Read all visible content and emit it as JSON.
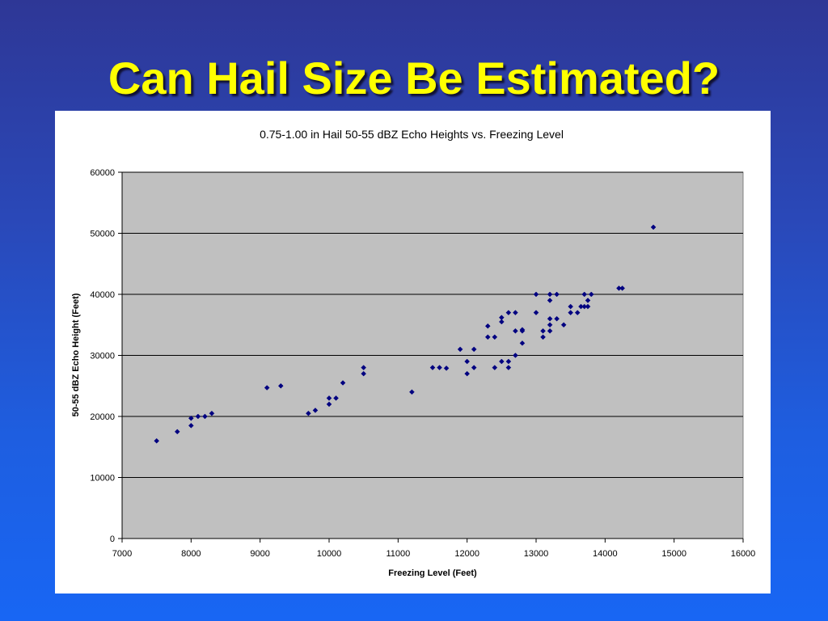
{
  "slide": {
    "title": "Can Hail Size Be Estimated?"
  },
  "colors": {
    "title_text": "#ffff00",
    "plot_background": "#c0c0c0",
    "marker": "#000080",
    "gridline": "#000000"
  },
  "chart_data": {
    "type": "scatter",
    "title": "0.75-1.00 in Hail 50-55 dBZ Echo Heights vs. Freezing Level",
    "xlabel": "Freezing Level (Feet)",
    "ylabel": "50-55 dBZ Echo Height (Feet)",
    "xlim": [
      7000,
      16000
    ],
    "ylim": [
      0,
      60000
    ],
    "xticks": [
      7000,
      8000,
      9000,
      10000,
      11000,
      12000,
      13000,
      14000,
      15000,
      16000
    ],
    "yticks": [
      0,
      10000,
      20000,
      30000,
      40000,
      50000,
      60000
    ],
    "grid": "horizontal major gridlines",
    "legend": "none",
    "marker": "diamond",
    "points": [
      [
        7500,
        16000
      ],
      [
        7800,
        17500
      ],
      [
        8000,
        18500
      ],
      [
        8000,
        19700
      ],
      [
        8100,
        20000
      ],
      [
        8200,
        20000
      ],
      [
        8300,
        20500
      ],
      [
        9100,
        24700
      ],
      [
        9300,
        25000
      ],
      [
        9700,
        20500
      ],
      [
        9800,
        21000
      ],
      [
        10000,
        22000
      ],
      [
        10000,
        23000
      ],
      [
        10100,
        23000
      ],
      [
        10200,
        25500
      ],
      [
        10500,
        27000
      ],
      [
        10500,
        28000
      ],
      [
        11200,
        24000
      ],
      [
        11500,
        28000
      ],
      [
        11600,
        28000
      ],
      [
        11700,
        27900
      ],
      [
        11900,
        31000
      ],
      [
        12000,
        27000
      ],
      [
        12000,
        29000
      ],
      [
        12100,
        28000
      ],
      [
        12100,
        31000
      ],
      [
        12300,
        33000
      ],
      [
        12300,
        34800
      ],
      [
        12400,
        28000
      ],
      [
        12400,
        33000
      ],
      [
        12500,
        29000
      ],
      [
        12500,
        35500
      ],
      [
        12500,
        36200
      ],
      [
        12600,
        28000
      ],
      [
        12600,
        29000
      ],
      [
        12600,
        37000
      ],
      [
        12700,
        30000
      ],
      [
        12700,
        34000
      ],
      [
        12700,
        37000
      ],
      [
        12800,
        32000
      ],
      [
        12800,
        34000
      ],
      [
        12800,
        34200
      ],
      [
        13000,
        37000
      ],
      [
        13000,
        40000
      ],
      [
        13100,
        33000
      ],
      [
        13100,
        34000
      ],
      [
        13200,
        34000
      ],
      [
        13200,
        35000
      ],
      [
        13200,
        36000
      ],
      [
        13200,
        39000
      ],
      [
        13200,
        40000
      ],
      [
        13300,
        36000
      ],
      [
        13300,
        40000
      ],
      [
        13400,
        35000
      ],
      [
        13500,
        37000
      ],
      [
        13500,
        38000
      ],
      [
        13600,
        37000
      ],
      [
        13650,
        38000
      ],
      [
        13700,
        38000
      ],
      [
        13700,
        40000
      ],
      [
        13750,
        38000
      ],
      [
        13750,
        39000
      ],
      [
        13800,
        40000
      ],
      [
        14200,
        41000
      ],
      [
        14250,
        41000
      ],
      [
        14700,
        51000
      ]
    ]
  }
}
